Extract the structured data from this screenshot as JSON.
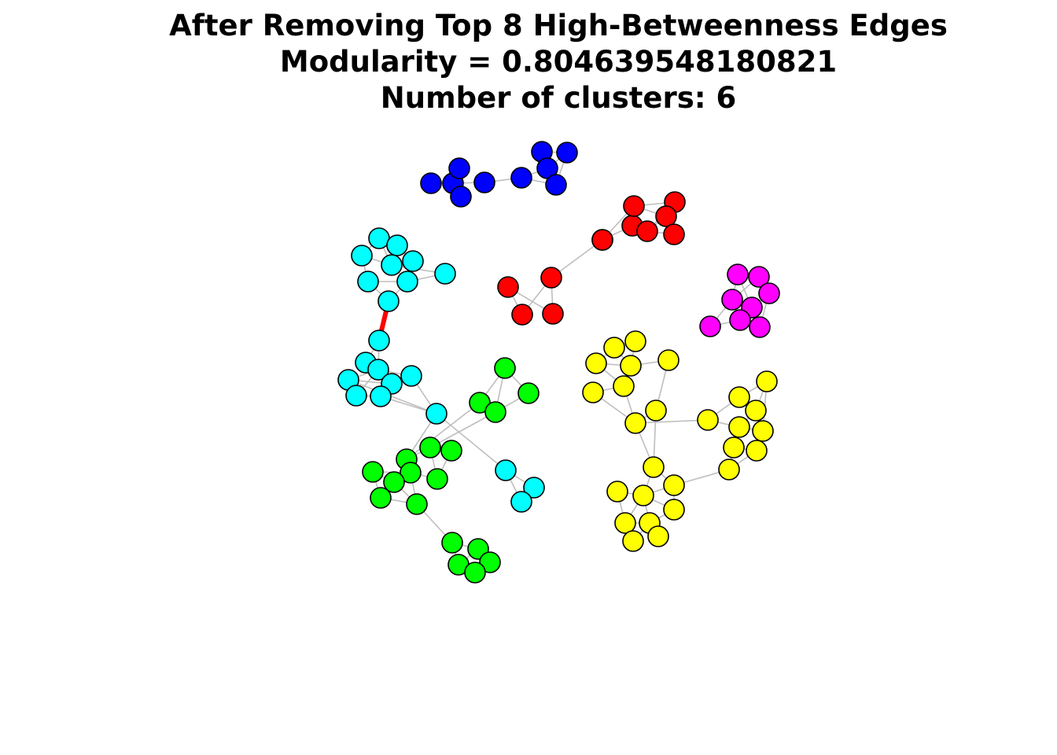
{
  "title": {
    "line1": "After Removing Top 8 High-Betweenness Edges",
    "line2": "Modularity = 0.804639548180821",
    "line3": "Number of clusters: 6"
  },
  "colors": {
    "blue": "#0000ff",
    "red": "#ff0000",
    "cyan": "#00ffff",
    "magenta": "#ff00ff",
    "green": "#00ff00",
    "yellow": "#ffff00",
    "edge": "#bebebe",
    "highlight_edge": "#ff0000",
    "node_stroke": "#000000"
  },
  "graph": {
    "nodes": [
      {
        "id": "b1",
        "cluster": "blue"
      },
      {
        "id": "b2",
        "cluster": "blue"
      },
      {
        "id": "b3",
        "cluster": "blue"
      },
      {
        "id": "b4",
        "cluster": "blue"
      },
      {
        "id": "b5",
        "cluster": "blue"
      },
      {
        "id": "b6",
        "cluster": "blue"
      },
      {
        "id": "b7",
        "cluster": "blue"
      },
      {
        "id": "b8",
        "cluster": "blue"
      },
      {
        "id": "b9",
        "cluster": "blue"
      },
      {
        "id": "b10",
        "cluster": "blue"
      },
      {
        "id": "r1",
        "cluster": "red"
      },
      {
        "id": "r2",
        "cluster": "red"
      },
      {
        "id": "r3",
        "cluster": "red"
      },
      {
        "id": "r4",
        "cluster": "red"
      },
      {
        "id": "r5",
        "cluster": "red"
      },
      {
        "id": "r6",
        "cluster": "red"
      },
      {
        "id": "r7",
        "cluster": "red"
      },
      {
        "id": "r8",
        "cluster": "red"
      },
      {
        "id": "r9",
        "cluster": "red"
      },
      {
        "id": "r10",
        "cluster": "red"
      },
      {
        "id": "r11",
        "cluster": "red"
      },
      {
        "id": "r12",
        "cluster": "red"
      },
      {
        "id": "c1",
        "cluster": "cyan"
      },
      {
        "id": "c2",
        "cluster": "cyan"
      },
      {
        "id": "c3",
        "cluster": "cyan"
      },
      {
        "id": "c4",
        "cluster": "cyan"
      },
      {
        "id": "c5",
        "cluster": "cyan"
      },
      {
        "id": "c6",
        "cluster": "cyan"
      },
      {
        "id": "c7",
        "cluster": "cyan"
      },
      {
        "id": "c8",
        "cluster": "cyan"
      },
      {
        "id": "c9",
        "cluster": "cyan"
      },
      {
        "id": "c10",
        "cluster": "cyan"
      },
      {
        "id": "c11",
        "cluster": "cyan"
      },
      {
        "id": "c12",
        "cluster": "cyan"
      },
      {
        "id": "c13",
        "cluster": "cyan"
      },
      {
        "id": "c14",
        "cluster": "cyan"
      },
      {
        "id": "c15",
        "cluster": "cyan"
      },
      {
        "id": "c16",
        "cluster": "cyan"
      },
      {
        "id": "c17",
        "cluster": "cyan"
      },
      {
        "id": "c18",
        "cluster": "cyan"
      },
      {
        "id": "c19",
        "cluster": "cyan"
      },
      {
        "id": "c20",
        "cluster": "cyan"
      },
      {
        "id": "c21",
        "cluster": "cyan"
      },
      {
        "id": "m1",
        "cluster": "magenta"
      },
      {
        "id": "m2",
        "cluster": "magenta"
      },
      {
        "id": "m3",
        "cluster": "magenta"
      },
      {
        "id": "m4",
        "cluster": "magenta"
      },
      {
        "id": "m5",
        "cluster": "magenta"
      },
      {
        "id": "m6",
        "cluster": "magenta"
      },
      {
        "id": "m7",
        "cluster": "magenta"
      },
      {
        "id": "m8",
        "cluster": "magenta"
      },
      {
        "id": "g1",
        "cluster": "green"
      },
      {
        "id": "g2",
        "cluster": "green"
      },
      {
        "id": "g3",
        "cluster": "green"
      },
      {
        "id": "g4",
        "cluster": "green"
      },
      {
        "id": "g5",
        "cluster": "green"
      },
      {
        "id": "g6",
        "cluster": "green"
      },
      {
        "id": "g7",
        "cluster": "green"
      },
      {
        "id": "g8",
        "cluster": "green"
      },
      {
        "id": "g9",
        "cluster": "green"
      },
      {
        "id": "g10",
        "cluster": "green"
      },
      {
        "id": "g11",
        "cluster": "green"
      },
      {
        "id": "g12",
        "cluster": "green"
      },
      {
        "id": "g13",
        "cluster": "green"
      },
      {
        "id": "g14",
        "cluster": "green"
      },
      {
        "id": "g15",
        "cluster": "green"
      },
      {
        "id": "g16",
        "cluster": "green"
      },
      {
        "id": "g17",
        "cluster": "green"
      },
      {
        "id": "g18",
        "cluster": "green"
      },
      {
        "id": "y1",
        "cluster": "yellow"
      },
      {
        "id": "y2",
        "cluster": "yellow"
      },
      {
        "id": "y3",
        "cluster": "yellow"
      },
      {
        "id": "y4",
        "cluster": "yellow"
      },
      {
        "id": "y5",
        "cluster": "yellow"
      },
      {
        "id": "y6",
        "cluster": "yellow"
      },
      {
        "id": "y7",
        "cluster": "yellow"
      },
      {
        "id": "y8",
        "cluster": "yellow"
      },
      {
        "id": "y9",
        "cluster": "yellow"
      },
      {
        "id": "y10",
        "cluster": "yellow"
      },
      {
        "id": "y11",
        "cluster": "yellow"
      },
      {
        "id": "y12",
        "cluster": "yellow"
      },
      {
        "id": "y13",
        "cluster": "yellow"
      },
      {
        "id": "y14",
        "cluster": "yellow"
      },
      {
        "id": "y15",
        "cluster": "yellow"
      },
      {
        "id": "y16",
        "cluster": "yellow"
      },
      {
        "id": "y17",
        "cluster": "yellow"
      },
      {
        "id": "y18",
        "cluster": "yellow"
      },
      {
        "id": "y19",
        "cluster": "yellow"
      },
      {
        "id": "y20",
        "cluster": "yellow"
      },
      {
        "id": "y21",
        "cluster": "yellow"
      },
      {
        "id": "y22",
        "cluster": "yellow"
      },
      {
        "id": "y23",
        "cluster": "yellow"
      },
      {
        "id": "y24",
        "cluster": "yellow"
      },
      {
        "id": "y25",
        "cluster": "yellow"
      },
      {
        "id": "y26",
        "cluster": "yellow"
      },
      {
        "id": "y27",
        "cluster": "yellow"
      }
    ],
    "edges": [
      [
        "b1",
        "b2"
      ],
      [
        "b1",
        "b3"
      ],
      [
        "b2",
        "b3"
      ],
      [
        "b3",
        "b4"
      ],
      [
        "b2",
        "b4"
      ],
      [
        "b2",
        "b5"
      ],
      [
        "b5",
        "b6"
      ],
      [
        "b6",
        "b8"
      ],
      [
        "b6",
        "b10"
      ],
      [
        "b7",
        "b8"
      ],
      [
        "b8",
        "b9"
      ],
      [
        "b8",
        "b10"
      ],
      [
        "b7",
        "b9"
      ],
      [
        "r1",
        "r3"
      ],
      [
        "r1",
        "r2"
      ],
      [
        "r1",
        "r5"
      ],
      [
        "r2",
        "r6"
      ],
      [
        "r3",
        "r4"
      ],
      [
        "r4",
        "r5"
      ],
      [
        "r5",
        "r6"
      ],
      [
        "r7",
        "r8"
      ],
      [
        "r7",
        "r12"
      ],
      [
        "r7",
        "r11"
      ],
      [
        "r8",
        "r10"
      ],
      [
        "r8",
        "r9"
      ],
      [
        "r9",
        "r10"
      ],
      [
        "r10",
        "r11"
      ],
      [
        "r11",
        "r12"
      ],
      [
        "r9",
        "r12"
      ],
      [
        "r8",
        "r12"
      ],
      [
        "r10",
        "r12"
      ],
      [
        "c1",
        "c2"
      ],
      [
        "c1",
        "c3"
      ],
      [
        "c1",
        "c4"
      ],
      [
        "c2",
        "c5"
      ],
      [
        "c3",
        "c4"
      ],
      [
        "c3",
        "c6"
      ],
      [
        "c4",
        "c5"
      ],
      [
        "c4",
        "c7"
      ],
      [
        "c5",
        "c7"
      ],
      [
        "c6",
        "c7"
      ],
      [
        "c7",
        "c8"
      ],
      [
        "c6",
        "c9"
      ],
      [
        "c7",
        "c9"
      ],
      [
        "c10",
        "c11"
      ],
      [
        "c10",
        "c12"
      ],
      [
        "c11",
        "c12"
      ],
      [
        "c11",
        "c13"
      ],
      [
        "c12",
        "c13"
      ],
      [
        "c12",
        "c14"
      ],
      [
        "c13",
        "c14"
      ],
      [
        "c13",
        "c15"
      ],
      [
        "c12",
        "c15"
      ],
      [
        "c14",
        "c15"
      ],
      [
        "c15",
        "c16"
      ],
      [
        "c11",
        "c16"
      ],
      [
        "c14",
        "c16"
      ],
      [
        "c16",
        "c17"
      ],
      [
        "c17",
        "c18"
      ],
      [
        "c17",
        "c19"
      ],
      [
        "c18",
        "c19"
      ],
      [
        "c18",
        "c20"
      ],
      [
        "c19",
        "c21"
      ],
      [
        "c20",
        "c21"
      ],
      [
        "c18",
        "c21"
      ],
      [
        "m1",
        "m2"
      ],
      [
        "m1",
        "m4"
      ],
      [
        "m2",
        "m3"
      ],
      [
        "m3",
        "m5"
      ],
      [
        "m4",
        "m5"
      ],
      [
        "m4",
        "m6"
      ],
      [
        "m5",
        "m7"
      ],
      [
        "m5",
        "m8"
      ],
      [
        "m6",
        "m7"
      ],
      [
        "m2",
        "m4"
      ],
      [
        "m7",
        "m8"
      ],
      [
        "m1",
        "m5"
      ],
      [
        "g1",
        "g2"
      ],
      [
        "g1",
        "g3"
      ],
      [
        "g1",
        "g4"
      ],
      [
        "g2",
        "g4"
      ],
      [
        "g3",
        "g4"
      ],
      [
        "g4",
        "g5"
      ],
      [
        "g5",
        "g6"
      ],
      [
        "g5",
        "g7"
      ],
      [
        "g6",
        "g7"
      ],
      [
        "g5",
        "g8"
      ],
      [
        "g8",
        "g9"
      ],
      [
        "g8",
        "g10"
      ],
      [
        "g9",
        "g10"
      ],
      [
        "g9",
        "g12"
      ],
      [
        "g10",
        "g11"
      ],
      [
        "g11",
        "g12"
      ],
      [
        "g11",
        "g13"
      ],
      [
        "g13",
        "g14"
      ],
      [
        "g12",
        "g14"
      ],
      [
        "g9",
        "g13"
      ],
      [
        "g14",
        "g15"
      ],
      [
        "g15",
        "g16"
      ],
      [
        "g15",
        "g17"
      ],
      [
        "g16",
        "g18"
      ],
      [
        "g17",
        "g18"
      ],
      [
        "g16",
        "g17"
      ],
      [
        "y1",
        "y2"
      ],
      [
        "y1",
        "y3"
      ],
      [
        "y2",
        "y3"
      ],
      [
        "y2",
        "y4"
      ],
      [
        "y3",
        "y4"
      ],
      [
        "y4",
        "y5"
      ],
      [
        "y1",
        "y6"
      ],
      [
        "y6",
        "y7"
      ],
      [
        "y7",
        "y8"
      ],
      [
        "y6",
        "y8"
      ],
      [
        "y4",
        "y9"
      ],
      [
        "y8",
        "y9"
      ],
      [
        "y9",
        "y10"
      ],
      [
        "y5",
        "y9"
      ],
      [
        "y9",
        "y11"
      ],
      [
        "y11",
        "y12"
      ],
      [
        "y12",
        "y13"
      ],
      [
        "y12",
        "y14"
      ],
      [
        "y13",
        "y14"
      ],
      [
        "y14",
        "y15"
      ],
      [
        "y13",
        "y16"
      ],
      [
        "y15",
        "y16"
      ],
      [
        "y16",
        "y17"
      ],
      [
        "y15",
        "y17"
      ],
      [
        "y17",
        "y18"
      ],
      [
        "y11",
        "y19"
      ],
      [
        "y19",
        "y20"
      ],
      [
        "y19",
        "y21"
      ],
      [
        "y20",
        "y21"
      ],
      [
        "y20",
        "y22"
      ],
      [
        "y21",
        "y23"
      ],
      [
        "y22",
        "y23"
      ],
      [
        "y22",
        "y24"
      ],
      [
        "y23",
        "y25"
      ],
      [
        "y24",
        "y25"
      ],
      [
        "y24",
        "y26"
      ],
      [
        "y23",
        "y26"
      ],
      [
        "y26",
        "y27"
      ],
      [
        "y25",
        "y27"
      ],
      [
        "y18",
        "y21"
      ]
    ],
    "highlighted_edges": [
      [
        "c8",
        "c10"
      ]
    ],
    "cross_edges": [
      [
        "c16",
        "g8"
      ],
      [
        "c17",
        "g4"
      ],
      [
        "r6",
        "r7"
      ],
      [
        "b4",
        "b5"
      ],
      [
        "y10",
        "y11"
      ]
    ]
  }
}
